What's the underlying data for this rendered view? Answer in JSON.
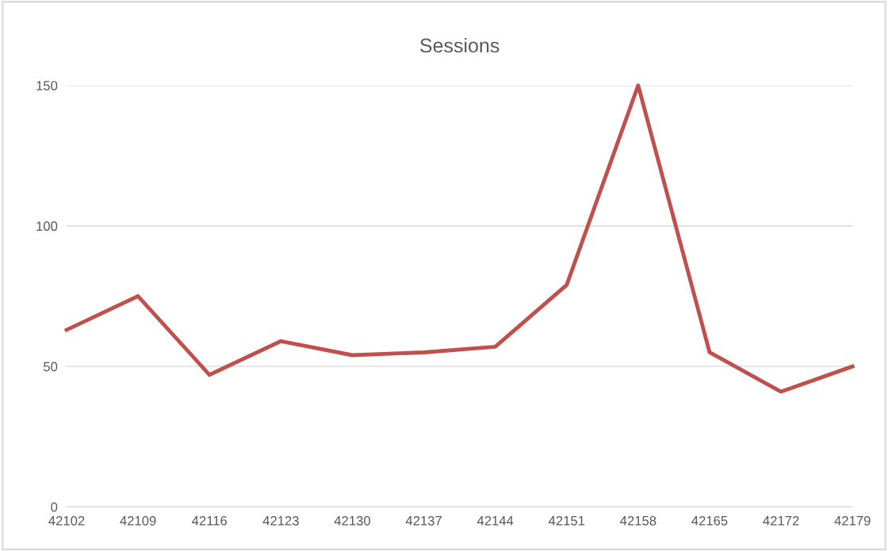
{
  "chart_data": {
    "type": "line",
    "title": "Sessions",
    "categories": [
      "42102",
      "42109",
      "42116",
      "42123",
      "42130",
      "42137",
      "42144",
      "42151",
      "42158",
      "42165",
      "42172",
      "42179"
    ],
    "series": [
      {
        "color": "#c0504d",
        "values": [
          63,
          75,
          47,
          59,
          54,
          55,
          57,
          79,
          150,
          55,
          41,
          50
        ]
      }
    ],
    "ylim": [
      0,
      150
    ],
    "yticks": [
      0,
      50,
      100,
      150
    ],
    "grid": "y",
    "legend": false,
    "marker": "none",
    "line_style": "solid"
  }
}
